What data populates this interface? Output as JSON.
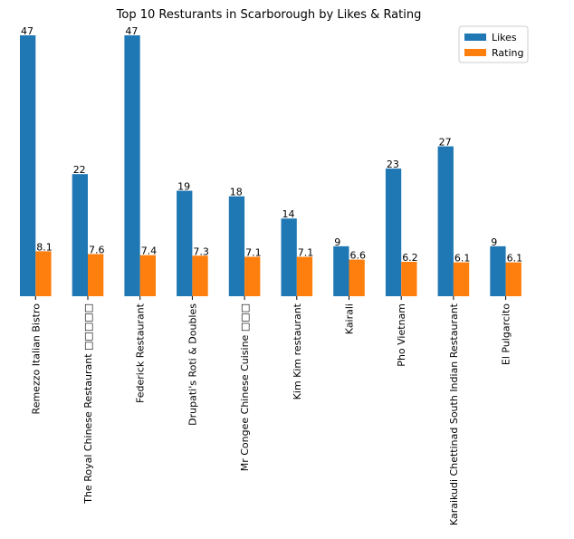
{
  "chart_data": {
    "type": "bar",
    "title": "Top 10 Resturants in Scarborough by Likes & Rating",
    "categories": [
      "Remezzo Italian Bistro",
      "The Royal Chinese Restaurant □□□□□",
      "Federick Restaurant",
      "Drupati's Roti & Doubles",
      "Mr Congee Chinese Cuisine □□□",
      "Kim Kim restaurant",
      "Kairali",
      "Pho Vietnam",
      "Karaikudi Chettinad South Indian Restaurant",
      "El Pulgarcito"
    ],
    "series": [
      {
        "name": "Likes",
        "values": [
          47,
          22,
          47,
          19,
          18,
          14,
          9,
          23,
          27,
          9
        ],
        "labels": [
          "47",
          "22",
          "47",
          "19",
          "18",
          "14",
          "9",
          "23",
          "27",
          "9"
        ],
        "color": "#1f77b4"
      },
      {
        "name": "Rating",
        "values": [
          8.1,
          7.6,
          7.4,
          7.3,
          7.1,
          7.1,
          6.6,
          6.2,
          6.1,
          6.1
        ],
        "labels": [
          "8.1",
          "7.6",
          "7.4",
          "7.3",
          "7.1",
          "7.1",
          "6.6",
          "6.2",
          "6.1",
          "6.1"
        ],
        "color": "#ff7f0e"
      }
    ],
    "ylim": [
      0,
      47
    ],
    "yaxis_visible": false,
    "grid": false,
    "legend_position": "top-right"
  }
}
